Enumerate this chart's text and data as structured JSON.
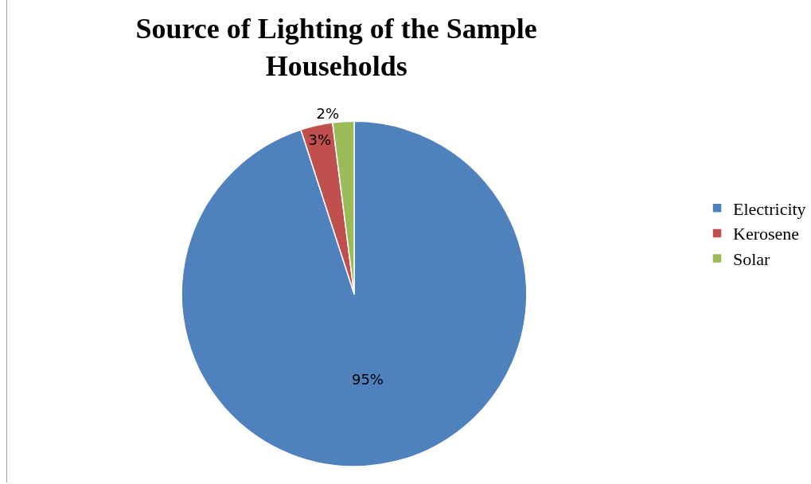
{
  "chart_data": {
    "type": "pie",
    "title": "Source of Lighting of the Sample\nHouseholds",
    "categories": [
      "Electricity",
      "Kerosene",
      "Solar"
    ],
    "values": [
      95,
      3,
      2
    ],
    "value_labels": [
      "95%",
      "3%",
      "2%"
    ],
    "colors": [
      "#4f81bd",
      "#c0504d",
      "#9bbb59"
    ],
    "legend": "right"
  }
}
